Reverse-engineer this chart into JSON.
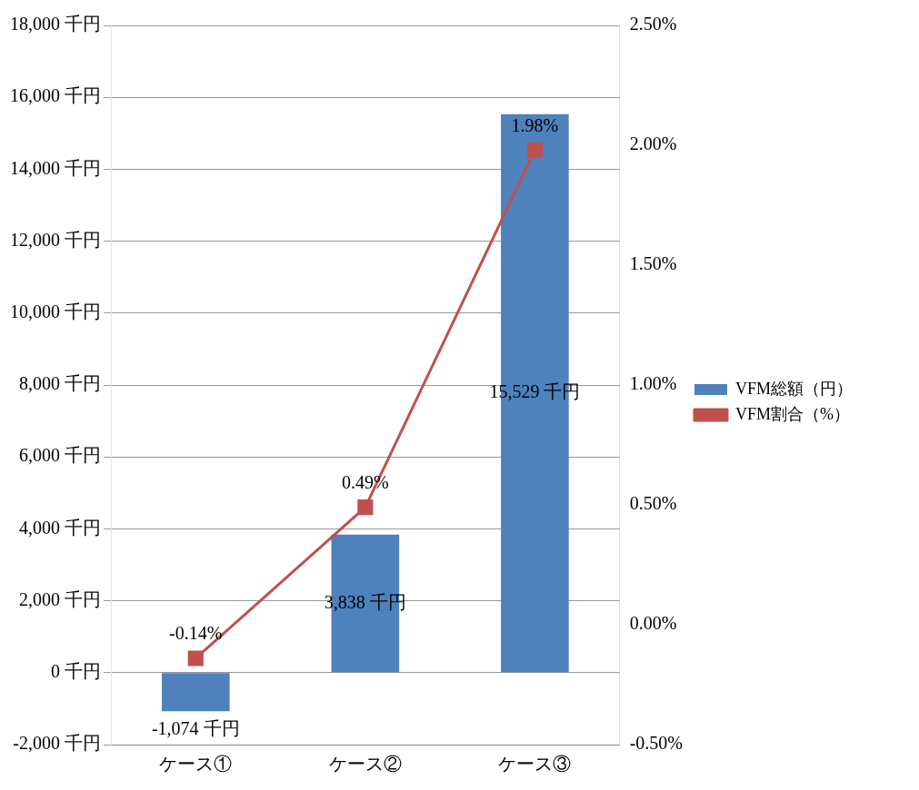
{
  "chart_data": {
    "type": "bar",
    "categories": [
      "ケース①",
      "ケース②",
      "ケース③"
    ],
    "series": [
      {
        "name": "VFM総額（円）",
        "color": "#4f81bd",
        "values": [
          -1074,
          3838,
          15529
        ],
        "value_labels": [
          "-1,074 千円",
          "3,838 千円",
          "15,529 千円"
        ]
      },
      {
        "name": "VFM割合（%）",
        "type": "line",
        "axis": "y2",
        "color": "#c0504d",
        "marker": "square",
        "values": [
          -0.14,
          0.49,
          1.98
        ],
        "value_labels": [
          "-0.14%",
          "0.49%",
          "1.98%"
        ]
      }
    ],
    "ylim": [
      -2000,
      18000
    ],
    "yticks": [
      {
        "value": -2000,
        "label": "-2,000 千円"
      },
      {
        "value": 0,
        "label": "0 千円"
      },
      {
        "value": 2000,
        "label": "2,000 千円"
      },
      {
        "value": 4000,
        "label": "4,000 千円"
      },
      {
        "value": 6000,
        "label": "6,000 千円"
      },
      {
        "value": 8000,
        "label": "8,000 千円"
      },
      {
        "value": 10000,
        "label": "10,000 千円"
      },
      {
        "value": 12000,
        "label": "12,000 千円"
      },
      {
        "value": 14000,
        "label": "14,000 千円"
      },
      {
        "value": 16000,
        "label": "16,000 千円"
      },
      {
        "value": 18000,
        "label": "18,000 千円"
      }
    ],
    "y2lim": [
      -0.5,
      2.5
    ],
    "y2ticks": [
      {
        "value": -0.5,
        "label": "-0.50%"
      },
      {
        "value": 0,
        "label": "0.00%"
      },
      {
        "value": 0.5,
        "label": "0.50%"
      },
      {
        "value": 1,
        "label": "1.00%"
      },
      {
        "value": 1.5,
        "label": "1.50%"
      },
      {
        "value": 2,
        "label": "2.00%"
      },
      {
        "value": 2.5,
        "label": "2.50%"
      }
    ],
    "grid": "y",
    "legend": "right"
  }
}
